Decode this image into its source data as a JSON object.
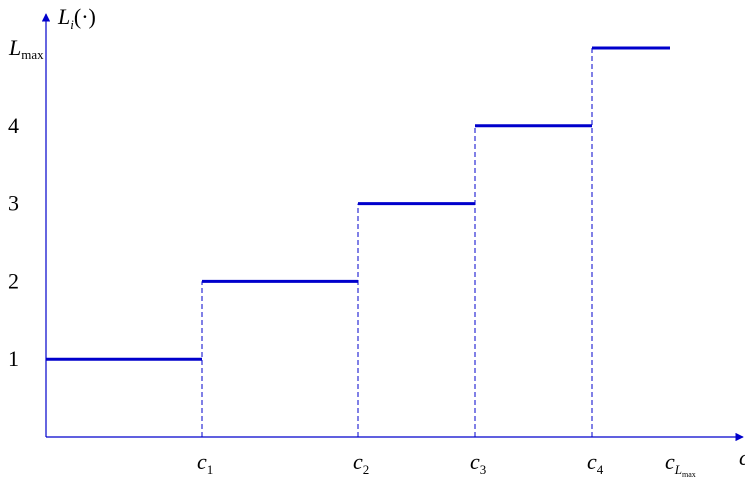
{
  "chart_data": {
    "type": "line",
    "subtype": "step",
    "y_axis_label": {
      "main": "L",
      "sub": "i",
      "suffix": "(·)"
    },
    "x_axis_label": {
      "main": "c"
    },
    "y_ticks": [
      {
        "value": 1,
        "label": "1"
      },
      {
        "value": 2,
        "label": "2"
      },
      {
        "value": 3,
        "label": "3"
      },
      {
        "value": 4,
        "label": "4"
      },
      {
        "value": 5,
        "label": "L",
        "sub": "max"
      }
    ],
    "x_ticks": [
      {
        "value": 1.0,
        "label": "c",
        "sub": "1"
      },
      {
        "value": 2.0,
        "label": "c",
        "sub": "2"
      },
      {
        "value": 2.75,
        "label": "c",
        "sub": "3"
      },
      {
        "value": 3.5,
        "label": "c",
        "sub": "4"
      },
      {
        "value": 4.0,
        "label": "c",
        "sub": "L",
        "subsub": "max"
      }
    ],
    "steps": [
      {
        "x0": 0.0,
        "x1": 1.0,
        "y": 1
      },
      {
        "x0": 1.0,
        "x1": 2.0,
        "y": 2
      },
      {
        "x0": 2.0,
        "x1": 2.75,
        "y": 3
      },
      {
        "x0": 2.75,
        "x1": 3.5,
        "y": 4
      },
      {
        "x0": 3.5,
        "x1": 4.0,
        "y": 5
      }
    ],
    "xlim": [
      0,
      4.6
    ],
    "ylim": [
      0,
      5.5
    ],
    "grid": false,
    "colors": {
      "series": "#0000cc",
      "dashed": "#0000cc",
      "axis": "#0000cc",
      "text": "#000000"
    }
  }
}
